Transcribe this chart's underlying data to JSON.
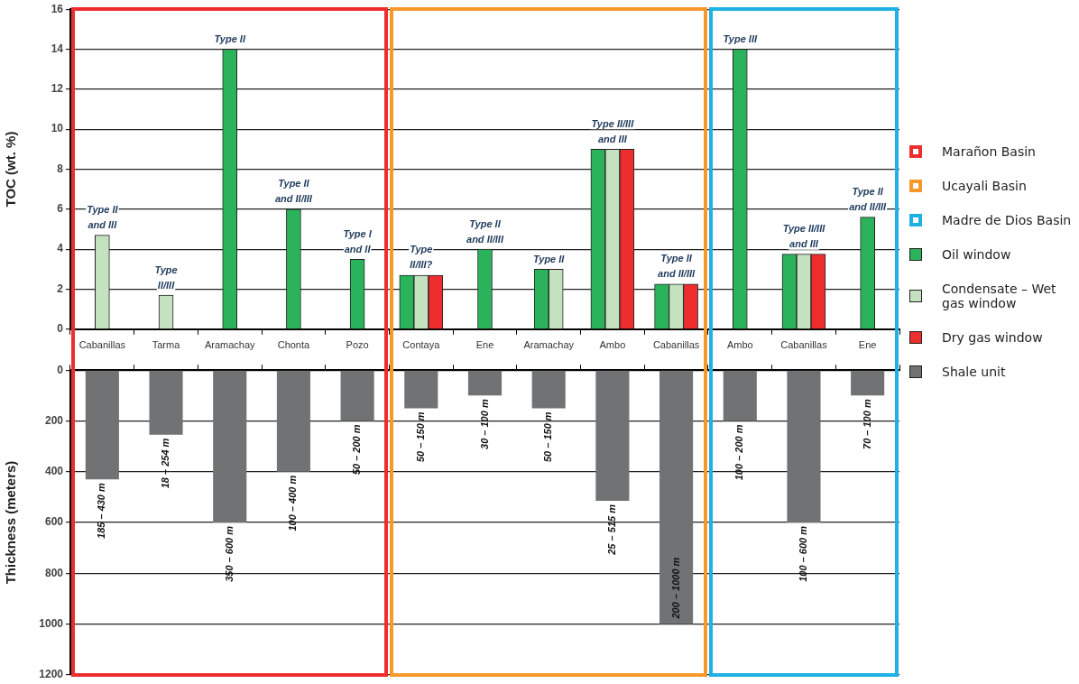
{
  "chart_data": [
    {
      "type": "bar",
      "ylabel": "TOC (wt. %)",
      "categories": [
        "Cabanillas",
        "Tarma",
        "Aramachay",
        "Chonta",
        "Pozo",
        "Contaya",
        "Ene",
        "Aramachay",
        "Ambo",
        "Cabanillas",
        "Ambo",
        "Cabanillas",
        "Ene"
      ],
      "series": [
        {
          "name": "Oil window",
          "color": "#2bb35c",
          "values": [
            null,
            null,
            14,
            6,
            3.5,
            2.7,
            4,
            3,
            9,
            2.25,
            14,
            3.75,
            5.6
          ]
        },
        {
          "name": "Condensate – Wet gas window",
          "color": "#c4e2c0",
          "values": [
            4.7,
            1.7,
            null,
            null,
            null,
            2.7,
            null,
            3,
            9,
            2.25,
            null,
            3.75,
            null
          ]
        },
        {
          "name": "Dry gas window",
          "color": "#ee2e2e",
          "values": [
            null,
            null,
            null,
            null,
            null,
            2.7,
            null,
            null,
            9,
            2.25,
            null,
            3.75,
            null
          ]
        }
      ],
      "ylim": [
        0,
        16
      ],
      "yticks": [
        0,
        2,
        4,
        6,
        8,
        10,
        12,
        14,
        16
      ],
      "grid": "y",
      "legend": "right",
      "annotations": [
        "Type II\nand III",
        "Type\nII/III",
        "Type II",
        "Type II\nand II/III",
        "Type I\nand II",
        "Type\nII/III?",
        "Type II\nand II/III",
        "Type II",
        "Type II/III\nand III",
        "Type II\nand II/III",
        "Type III",
        "Type II/III\nand III",
        "Type II\nand II/III"
      ]
    },
    {
      "type": "bar",
      "ylabel": "Thickness (meters)",
      "categories": [
        null,
        null,
        null,
        null,
        null,
        null,
        null,
        null,
        null,
        null,
        null,
        null,
        null
      ],
      "series": [
        {
          "name": "Shale unit",
          "color": "#707274",
          "values": [
            430,
            254,
            600,
            400,
            200,
            150,
            100,
            150,
            515,
            1000,
            200,
            600,
            100
          ]
        }
      ],
      "annotations": [
        "185 – 430 m",
        "18 – 254 m",
        "350 – 600 m",
        "100 – 400 m",
        "50 – 200 m",
        "50 – 150 m",
        "30 – 100 m",
        "50 – 150 m",
        "25 – 515 m",
        "200 – 1000 m",
        "100 – 200 m",
        "100 – 600 m",
        "70 – 100 m"
      ],
      "ylim": [
        1200,
        0
      ],
      "yticks": [
        0,
        200,
        400,
        600,
        800,
        1000,
        1200
      ],
      "grid": "y",
      "legend": "right",
      "tick_labels": "y"
    },
    {
      "type": "other",
      "annotations": [
        "Marañon Basin",
        "Ucayali Basin",
        "Madre de Dios Basin"
      ]
    }
  ]
}
